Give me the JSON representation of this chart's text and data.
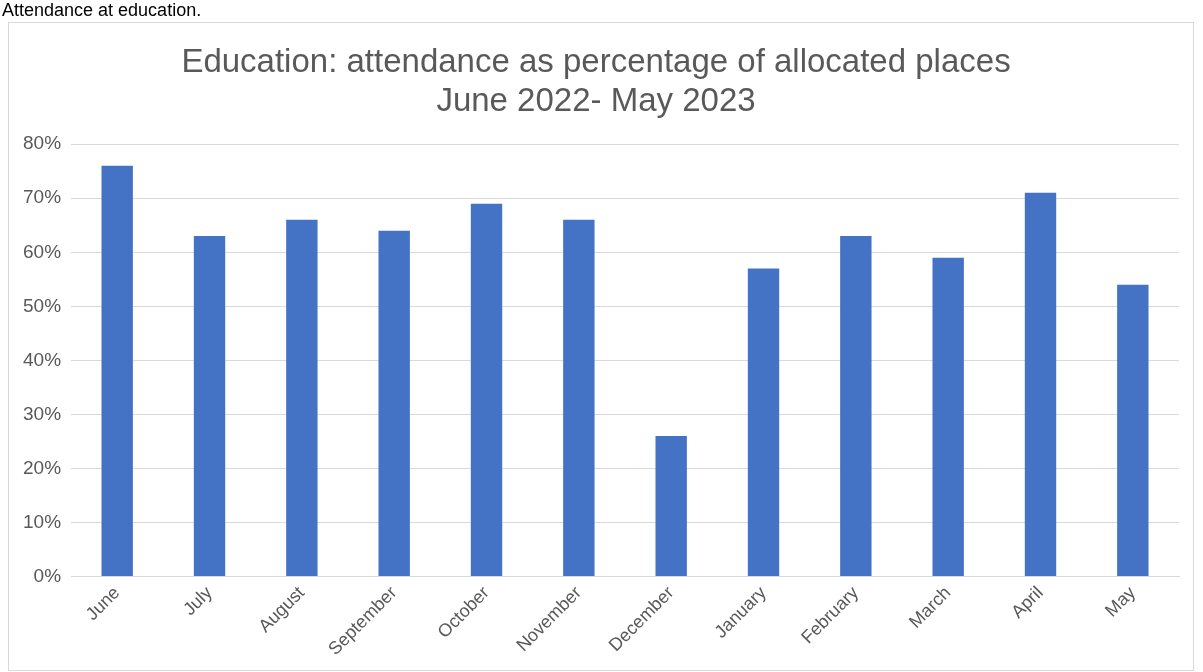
{
  "chart_data": {
    "type": "bar",
    "title": "Education: attendance as percentage of allocated places",
    "subtitle": "June 2022- May 2023",
    "annotations": [
      "Attendance at education."
    ],
    "categories": [
      "June",
      "July",
      "August",
      "September",
      "October",
      "November",
      "December",
      "January",
      "February",
      "March",
      "April",
      "May"
    ],
    "values": [
      76,
      63,
      66,
      64,
      69,
      66,
      26,
      57,
      63,
      59,
      71,
      54
    ],
    "color": "#4472c4",
    "ylim": [
      0,
      80
    ],
    "yticks": [
      {
        "value": 0,
        "label": "0%"
      },
      {
        "value": 10,
        "label": "10%"
      },
      {
        "value": 20,
        "label": "20%"
      },
      {
        "value": 30,
        "label": "30%"
      },
      {
        "value": 40,
        "label": "40%"
      },
      {
        "value": 50,
        "label": "50%"
      },
      {
        "value": 60,
        "label": "60%"
      },
      {
        "value": 70,
        "label": "70%"
      },
      {
        "value": 80,
        "label": "80%"
      }
    ],
    "grid": "y",
    "legend": false
  }
}
